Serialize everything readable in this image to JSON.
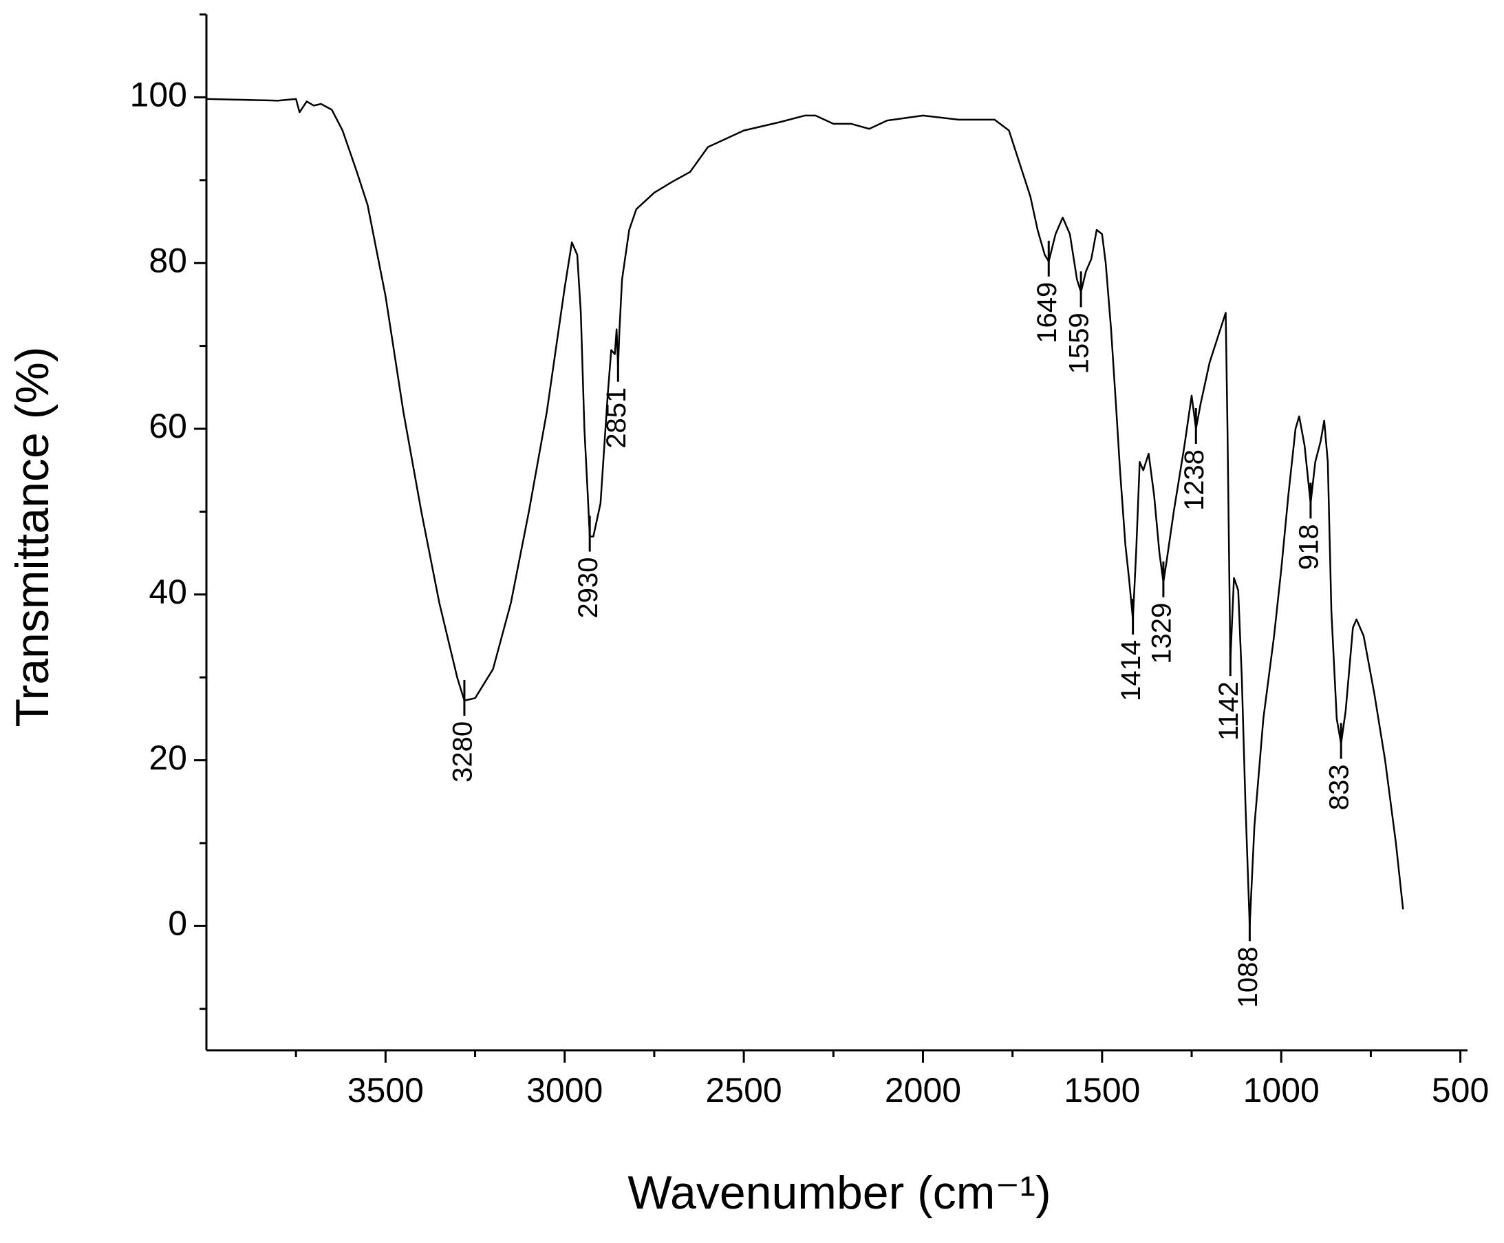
{
  "chart_data": {
    "type": "line",
    "x_label": "Wavenumber (cm⁻¹)",
    "y_label": "Transmittance (%)",
    "xlim": [
      4000,
      480
    ],
    "ylim": [
      -15,
      110
    ],
    "xticks": [
      3500,
      3000,
      2500,
      2000,
      1500,
      1000,
      500
    ],
    "xminorticks": [
      3750,
      3250,
      2750,
      2250,
      1750,
      1250,
      750
    ],
    "yticks": [
      0,
      20,
      40,
      60,
      80,
      100
    ],
    "yminorticks": [
      -10,
      10,
      30,
      50,
      70,
      90,
      110
    ],
    "color": "#000000",
    "x": [
      4000,
      3900,
      3800,
      3750,
      3740,
      3720,
      3700,
      3680,
      3650,
      3620,
      3580,
      3550,
      3500,
      3450,
      3400,
      3350,
      3300,
      3280,
      3250,
      3200,
      3150,
      3100,
      3050,
      3000,
      2980,
      2965,
      2955,
      2945,
      2935,
      2930,
      2920,
      2900,
      2880,
      2870,
      2860,
      2855,
      2851,
      2847,
      2840,
      2820,
      2800,
      2750,
      2700,
      2650,
      2600,
      2500,
      2400,
      2330,
      2300,
      2250,
      2200,
      2150,
      2100,
      2000,
      1900,
      1800,
      1760,
      1730,
      1700,
      1680,
      1660,
      1649,
      1630,
      1610,
      1590,
      1570,
      1559,
      1545,
      1530,
      1515,
      1500,
      1490,
      1475,
      1460,
      1450,
      1435,
      1425,
      1414,
      1405,
      1395,
      1385,
      1370,
      1355,
      1340,
      1329,
      1320,
      1300,
      1270,
      1250,
      1238,
      1225,
      1200,
      1170,
      1155,
      1150,
      1142,
      1132,
      1120,
      1110,
      1100,
      1088,
      1075,
      1050,
      1020,
      1000,
      980,
      960,
      950,
      935,
      918,
      905,
      890,
      880,
      870,
      860,
      845,
      833,
      820,
      800,
      790,
      770,
      740,
      710,
      680,
      660
    ],
    "values": [
      99.8,
      99.7,
      99.6,
      99.8,
      98.2,
      99.5,
      99.0,
      99.2,
      98.5,
      96,
      91,
      87,
      76,
      62,
      50,
      39,
      30,
      27.2,
      27.5,
      31,
      39,
      50,
      62,
      77,
      82.5,
      81,
      74,
      60,
      51.5,
      47,
      47,
      51,
      64,
      69.5,
      69,
      72,
      67.5,
      72,
      78,
      84,
      86.5,
      88.5,
      89.8,
      91,
      94,
      96,
      97,
      97.8,
      97.8,
      96.8,
      96.8,
      96.2,
      97.2,
      97.8,
      97.3,
      97.3,
      96,
      92,
      88,
      84,
      81,
      80.2,
      83.5,
      85.5,
      83.5,
      78,
      76.5,
      79,
      80.5,
      84,
      83.5,
      80,
      72,
      62,
      55,
      46,
      42,
      37,
      45,
      56,
      55,
      57,
      52,
      45,
      41.5,
      44,
      50,
      58,
      64,
      60,
      63,
      68,
      72,
      74,
      60,
      32,
      42,
      40.5,
      30,
      15,
      0,
      12,
      25,
      35,
      43,
      52,
      60,
      61.5,
      58,
      51,
      56,
      58.5,
      61,
      56,
      38,
      25,
      22,
      26,
      36,
      37,
      35,
      28,
      20,
      10,
      2
    ],
    "annotations": [
      {
        "x": 3280,
        "y": 27.2
      },
      {
        "x": 2930,
        "y": 47
      },
      {
        "x": 2851,
        "y": 67.5
      },
      {
        "x": 1649,
        "y": 80.2
      },
      {
        "x": 1559,
        "y": 76.5
      },
      {
        "x": 1414,
        "y": 37
      },
      {
        "x": 1329,
        "y": 41.5
      },
      {
        "x": 1238,
        "y": 60
      },
      {
        "x": 1142,
        "y": 32
      },
      {
        "x": 1088,
        "y": 0
      },
      {
        "x": 918,
        "y": 51
      },
      {
        "x": 833,
        "y": 22
      }
    ]
  }
}
